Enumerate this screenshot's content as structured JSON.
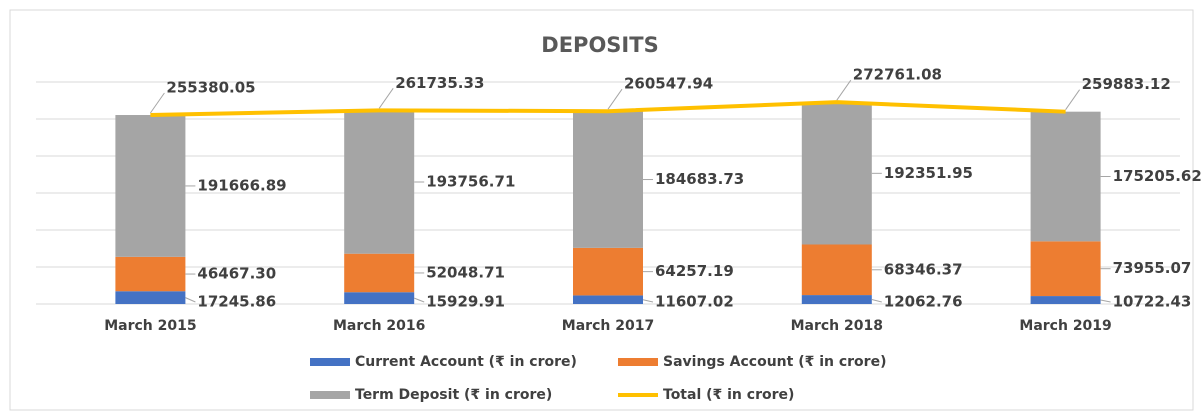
{
  "chart_data": {
    "type": "stacked_bar_line",
    "title": "DEPOSITS",
    "categories": [
      "March 2015",
      "March 2016",
      "March 2017",
      "March 2018",
      "March 2019"
    ],
    "series": [
      {
        "name": "Current Account (₹ in crore)",
        "color": "#4472c4",
        "values": [
          17245.86,
          15929.91,
          11607.02,
          12062.76,
          10722.43
        ]
      },
      {
        "name": "Savings Account (₹ in crore)",
        "color": "#ed7d31",
        "values": [
          46467.3,
          52048.71,
          64257.19,
          68346.37,
          73955.07
        ],
        "value_labels": [
          "46467.30",
          "52048.71",
          "64257.19",
          "68346.37",
          "73955.07"
        ]
      },
      {
        "name": "Term Deposit (₹ in crore)",
        "color": "#a5a5a5",
        "values": [
          191666.89,
          193756.71,
          184683.73,
          192351.95,
          175205.62
        ]
      },
      {
        "name": "Total (₹ in crore)",
        "color": "#ffc000",
        "type": "line",
        "values": [
          255380.05,
          261735.33,
          260547.94,
          272761.08,
          259883.12
        ]
      }
    ],
    "ylim": [
      0,
      300000
    ],
    "yticks": [
      0,
      50000,
      100000,
      150000,
      200000,
      250000,
      300000
    ],
    "grid": true
  }
}
